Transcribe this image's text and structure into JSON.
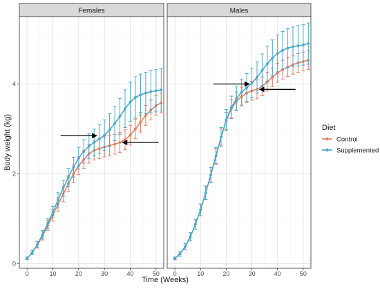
{
  "chart_data": {
    "type": "line",
    "xlabel": "Time (Weeks)",
    "ylabel": "Body weight (kg)",
    "xlim": [
      -3,
      53
    ],
    "ylim": [
      -0.1,
      5.5
    ],
    "xticks": [
      0,
      10,
      20,
      30,
      40,
      50
    ],
    "yticks": [
      0,
      2,
      4
    ],
    "grid": true,
    "legend": {
      "title": "Diet",
      "position": "right",
      "entries": [
        "Control",
        "Supplemented"
      ]
    },
    "colors": {
      "Control": "#e07c64",
      "Supplemented": "#4aa8c9"
    },
    "facets": [
      {
        "label": "Females",
        "x": [
          0,
          2,
          4,
          6,
          8,
          10,
          12,
          14,
          16,
          18,
          20,
          22,
          24,
          26,
          28,
          30,
          32,
          34,
          36,
          38,
          40,
          42,
          44,
          46,
          48,
          50,
          52
        ],
        "series": [
          {
            "name": "Control",
            "values": [
              0.12,
              0.25,
              0.42,
              0.62,
              0.85,
              1.08,
              1.32,
              1.55,
              1.78,
              2.0,
              2.18,
              2.32,
              2.45,
              2.52,
              2.56,
              2.6,
              2.63,
              2.66,
              2.7,
              2.76,
              2.86,
              3.0,
              3.15,
              3.3,
              3.42,
              3.52,
              3.58
            ],
            "err": [
              0.03,
              0.05,
              0.07,
              0.09,
              0.11,
              0.13,
              0.15,
              0.17,
              0.18,
              0.2,
              0.2,
              0.2,
              0.21,
              0.21,
              0.22,
              0.22,
              0.22,
              0.22,
              0.22,
              0.22,
              0.22,
              0.22,
              0.22,
              0.22,
              0.22,
              0.22,
              0.22
            ]
          },
          {
            "name": "Supplemented",
            "values": [
              0.12,
              0.25,
              0.43,
              0.65,
              0.9,
              1.15,
              1.42,
              1.68,
              1.92,
              2.15,
              2.35,
              2.5,
              2.62,
              2.7,
              2.78,
              2.86,
              2.98,
              3.12,
              3.28,
              3.45,
              3.6,
              3.7,
              3.76,
              3.8,
              3.83,
              3.85,
              3.87
            ],
            "err": [
              0.03,
              0.05,
              0.07,
              0.09,
              0.11,
              0.13,
              0.16,
              0.18,
              0.2,
              0.22,
              0.24,
              0.26,
              0.28,
              0.3,
              0.32,
              0.34,
              0.36,
              0.38,
              0.4,
              0.42,
              0.44,
              0.46,
              0.46,
              0.46,
              0.47,
              0.47,
              0.47
            ]
          }
        ],
        "annotations": [
          {
            "type": "arrow",
            "x_from": 13,
            "x_to": 27,
            "y": 2.85,
            "direction": "right"
          },
          {
            "type": "arrow",
            "x_from": 51,
            "x_to": 37,
            "y": 2.7,
            "direction": "left"
          }
        ]
      },
      {
        "label": "Males",
        "x": [
          0,
          2,
          4,
          6,
          8,
          10,
          12,
          14,
          16,
          18,
          20,
          22,
          24,
          26,
          28,
          30,
          32,
          34,
          36,
          38,
          40,
          42,
          44,
          46,
          48,
          50,
          52
        ],
        "series": [
          {
            "name": "Control",
            "values": [
              0.12,
              0.22,
              0.38,
              0.6,
              0.88,
              1.2,
              1.58,
              1.98,
              2.4,
              2.82,
              3.18,
              3.45,
              3.62,
              3.72,
              3.8,
              3.85,
              3.88,
              3.95,
              4.05,
              4.15,
              4.25,
              4.32,
              4.38,
              4.43,
              4.47,
              4.5,
              4.53
            ],
            "err": [
              0.03,
              0.05,
              0.07,
              0.09,
              0.11,
              0.13,
              0.15,
              0.16,
              0.17,
              0.18,
              0.19,
              0.2,
              0.2,
              0.21,
              0.21,
              0.21,
              0.21,
              0.21,
              0.21,
              0.21,
              0.21,
              0.21,
              0.21,
              0.21,
              0.21,
              0.21,
              0.21
            ]
          },
          {
            "name": "Supplemented",
            "values": [
              0.12,
              0.22,
              0.38,
              0.6,
              0.88,
              1.2,
              1.58,
              1.98,
              2.4,
              2.82,
              3.2,
              3.48,
              3.68,
              3.82,
              3.92,
              4.02,
              4.15,
              4.3,
              4.45,
              4.58,
              4.68,
              4.75,
              4.8,
              4.83,
              4.85,
              4.87,
              4.9
            ],
            "err": [
              0.03,
              0.05,
              0.07,
              0.09,
              0.11,
              0.13,
              0.15,
              0.17,
              0.19,
              0.21,
              0.23,
              0.25,
              0.27,
              0.29,
              0.31,
              0.33,
              0.35,
              0.37,
              0.39,
              0.4,
              0.41,
              0.42,
              0.43,
              0.44,
              0.45,
              0.45,
              0.46
            ]
          }
        ],
        "annotations": [
          {
            "type": "arrow",
            "x_from": 15,
            "x_to": 29,
            "y": 4.0,
            "direction": "right"
          },
          {
            "type": "arrow",
            "x_from": 47,
            "x_to": 33,
            "y": 3.88,
            "direction": "left"
          }
        ]
      }
    ]
  }
}
